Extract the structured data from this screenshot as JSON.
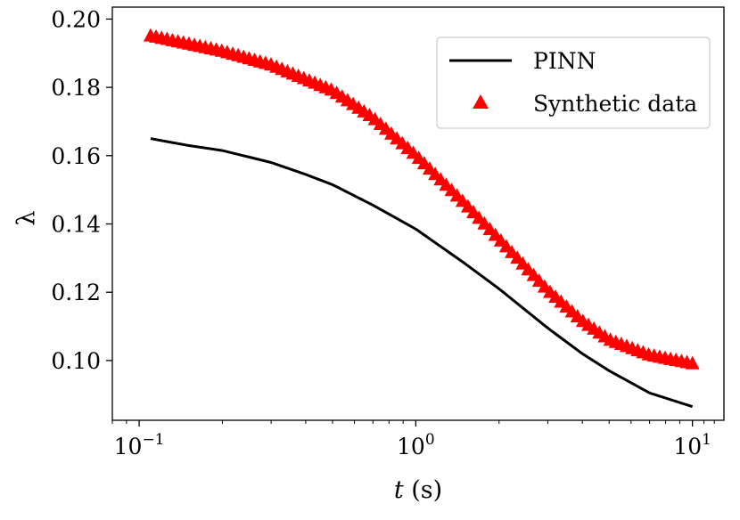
{
  "chart_data": {
    "type": "line",
    "title": "",
    "xlabel_italic": "t",
    "xlabel_rest": " (s)",
    "ylabel": "λ",
    "x_scale": "log",
    "xlim": [
      0.08,
      13
    ],
    "ylim": [
      0.0825,
      0.2035
    ],
    "x_ticks": [
      {
        "value": 0.1,
        "base": "10",
        "exp": "−1"
      },
      {
        "value": 1,
        "base": "10",
        "exp": "0"
      },
      {
        "value": 10,
        "base": "10",
        "exp": "1"
      }
    ],
    "y_ticks": [
      {
        "value": 0.1,
        "label": "0.10"
      },
      {
        "value": 0.12,
        "label": "0.12"
      },
      {
        "value": 0.14,
        "label": "0.14"
      },
      {
        "value": 0.16,
        "label": "0.16"
      },
      {
        "value": 0.18,
        "label": "0.18"
      },
      {
        "value": 0.2,
        "label": "0.20"
      }
    ],
    "grid": false,
    "legend_position": "upper right",
    "series": [
      {
        "name": "PINN",
        "style": "line",
        "color": "#000000",
        "x": [
          0.11,
          0.15,
          0.2,
          0.3,
          0.4,
          0.5,
          0.7,
          1.0,
          1.5,
          2.0,
          3.0,
          4.0,
          5.0,
          7.0,
          10.0
        ],
        "y": [
          0.165,
          0.163,
          0.1615,
          0.158,
          0.1545,
          0.1515,
          0.1455,
          0.1385,
          0.1285,
          0.121,
          0.1095,
          0.102,
          0.097,
          0.0905,
          0.0865
        ]
      },
      {
        "name": "Synthetic data",
        "style": "marker-triangle",
        "color": "#ff0000",
        "x": [
          0.11,
          0.2,
          0.3,
          0.5,
          0.7,
          1.0,
          1.5,
          2.0,
          3.0,
          4.0,
          5.0,
          7.0,
          10.0
        ],
        "y": [
          0.195,
          0.1905,
          0.1865,
          0.179,
          0.171,
          0.16,
          0.146,
          0.1355,
          0.1205,
          0.1115,
          0.106,
          0.1015,
          0.099
        ]
      }
    ]
  }
}
